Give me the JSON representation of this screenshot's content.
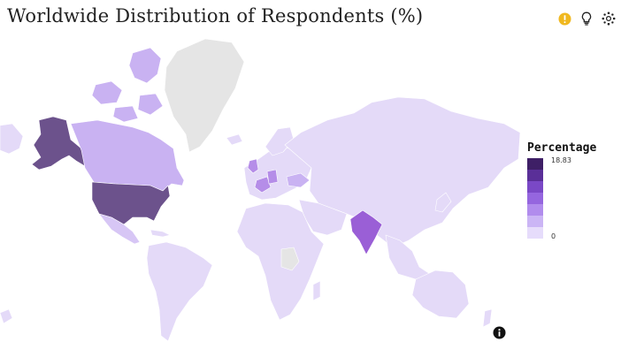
{
  "title": "Worldwide Distribution of Respondents (%)",
  "toolbar": {
    "icons": [
      "warning-icon",
      "lightbulb-icon",
      "settings-icon"
    ],
    "warning_color": "#f0b81f"
  },
  "legend": {
    "title": "Percentage",
    "max_label": "18.83",
    "min_label": "0",
    "colors": [
      "#3e1f66",
      "#5a2f98",
      "#7a48c6",
      "#9566df",
      "#b18ced",
      "#cbb5f5",
      "#e6dcfb"
    ]
  },
  "map": {
    "colors": {
      "no_data": "#e5e5e5",
      "very_low": "#e4daf8",
      "low": "#d7c6f5",
      "mid_low": "#c9b2f2",
      "mid": "#b58de8",
      "high": "#9a5fd6",
      "max": "#6c528c"
    }
  },
  "info_icon": "info-icon"
}
